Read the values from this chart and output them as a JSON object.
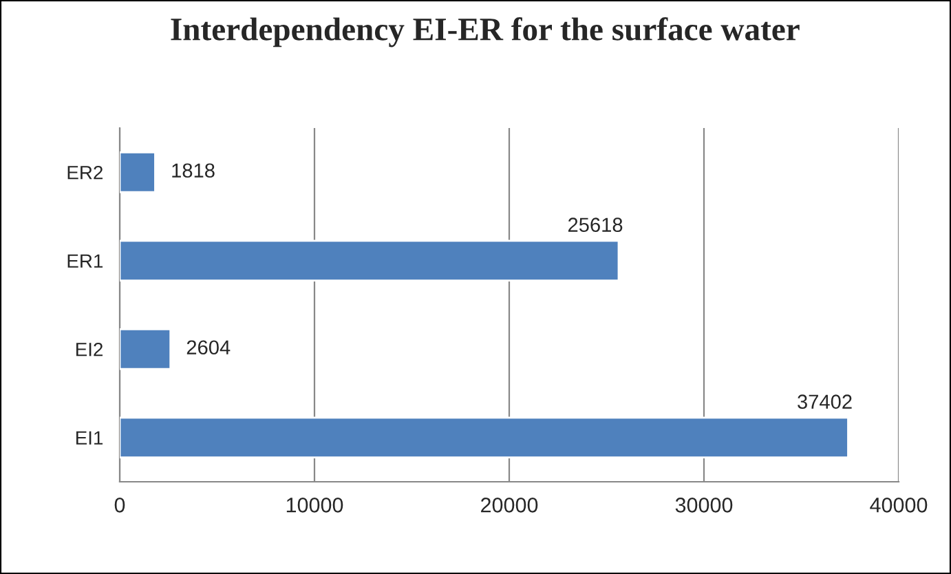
{
  "chart_data": {
    "type": "bar",
    "orientation": "horizontal",
    "title": "Interdependency EI-ER for the surface water",
    "categories": [
      "ER2",
      "ER1",
      "EI2",
      "EI1"
    ],
    "values": [
      1818,
      25618,
      2604,
      37402
    ],
    "color": "#4f81bd",
    "xlim": [
      0,
      40000
    ],
    "xticks": [
      0,
      10000,
      20000,
      30000,
      40000
    ],
    "grid": "x",
    "data_labels": true
  }
}
